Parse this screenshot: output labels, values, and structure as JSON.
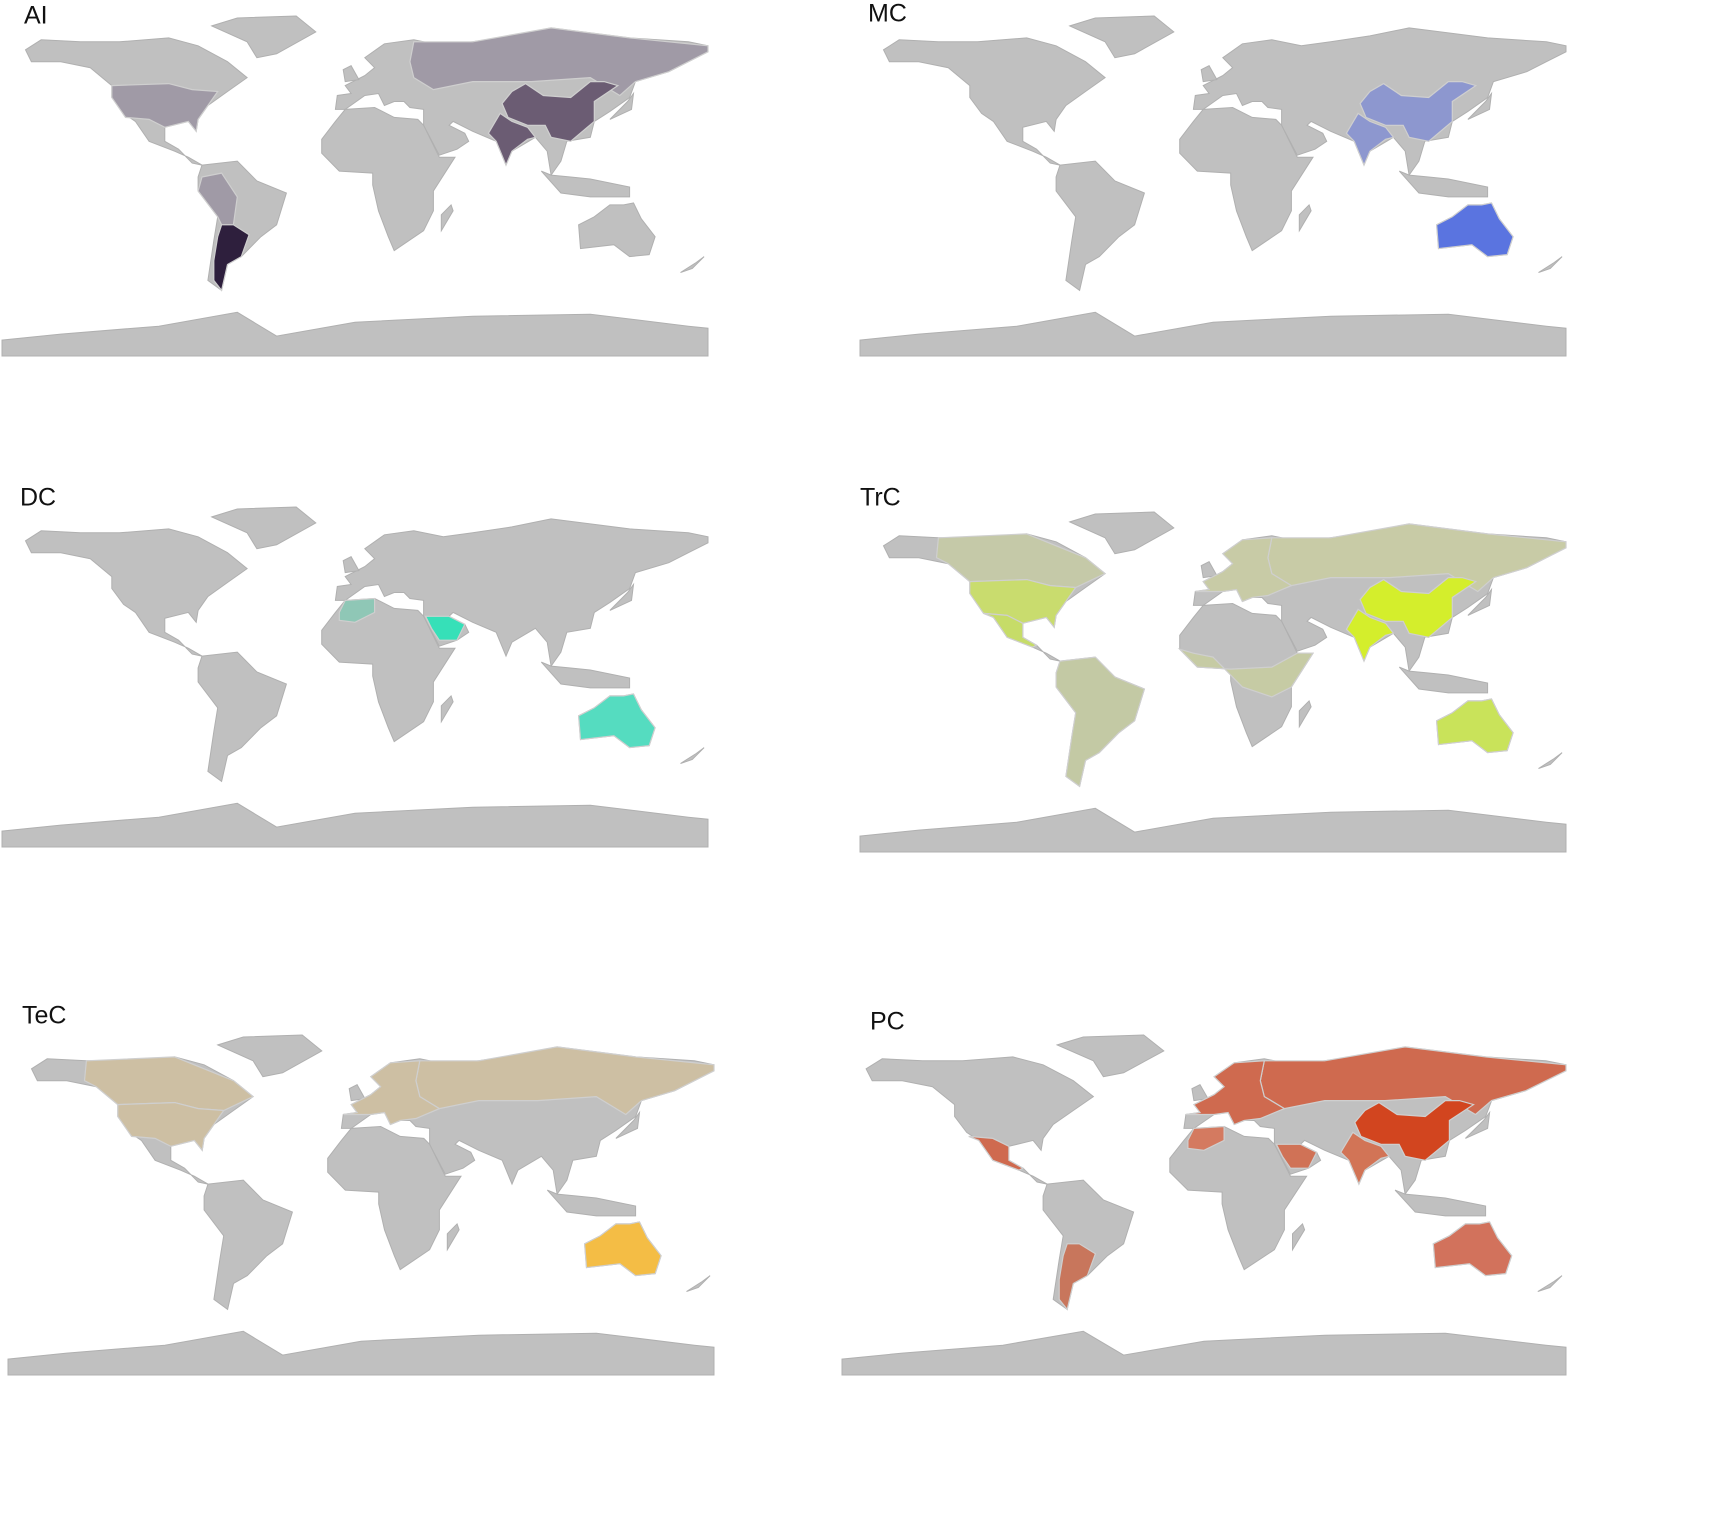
{
  "panels": [
    {
      "label": "AI"
    },
    {
      "label": "MC"
    },
    {
      "label": "DC"
    },
    {
      "label": "TrC"
    },
    {
      "label": "TeC"
    },
    {
      "label": "PC"
    }
  ]
}
